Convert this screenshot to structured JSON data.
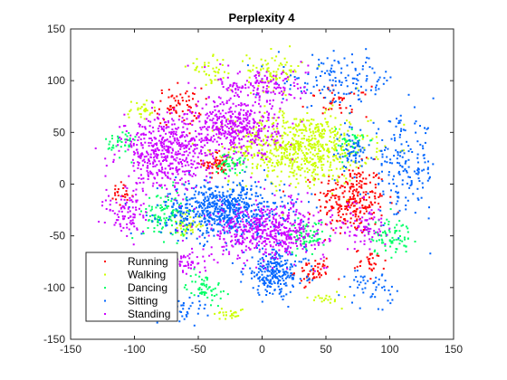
{
  "chart_data": {
    "type": "scatter",
    "title": "Perplexity 4",
    "xlabel": "",
    "ylabel": "",
    "xlim": [
      -150,
      150
    ],
    "ylim": [
      -150,
      150
    ],
    "xticks": [
      -150,
      -100,
      -50,
      0,
      50,
      100,
      150
    ],
    "yticks": [
      -150,
      -100,
      -50,
      0,
      50,
      100,
      150
    ],
    "grid": false,
    "legend_placement": "bottom-left",
    "series": [
      {
        "name": "Running",
        "color": "#ff0000",
        "clusters": [
          {
            "cx": 70,
            "cy": -15,
            "rx": 22,
            "ry": 28,
            "n": 260
          },
          {
            "cx": -35,
            "cy": 20,
            "rx": 10,
            "ry": 10,
            "n": 60
          },
          {
            "cx": -65,
            "cy": 75,
            "rx": 15,
            "ry": 15,
            "n": 70
          },
          {
            "cx": 40,
            "cy": -85,
            "rx": 12,
            "ry": 10,
            "n": 50
          },
          {
            "cx": 60,
            "cy": 80,
            "rx": 20,
            "ry": 12,
            "n": 40
          },
          {
            "cx": -110,
            "cy": -10,
            "rx": 8,
            "ry": 10,
            "n": 25
          },
          {
            "cx": 85,
            "cy": -75,
            "rx": 10,
            "ry": 10,
            "n": 30
          }
        ]
      },
      {
        "name": "Walking",
        "color": "#ccff00",
        "clusters": [
          {
            "cx": 30,
            "cy": 35,
            "rx": 45,
            "ry": 28,
            "n": 700
          },
          {
            "cx": 10,
            "cy": 110,
            "rx": 18,
            "ry": 15,
            "n": 80
          },
          {
            "cx": -60,
            "cy": -40,
            "rx": 10,
            "ry": 10,
            "n": 50
          },
          {
            "cx": -40,
            "cy": 110,
            "rx": 15,
            "ry": 10,
            "n": 40
          },
          {
            "cx": -95,
            "cy": 70,
            "rx": 10,
            "ry": 10,
            "n": 30
          },
          {
            "cx": -25,
            "cy": -125,
            "rx": 10,
            "ry": 5,
            "n": 25
          },
          {
            "cx": 50,
            "cy": -110,
            "rx": 10,
            "ry": 6,
            "n": 20
          }
        ]
      },
      {
        "name": "Dancing",
        "color": "#00ff66",
        "clusters": [
          {
            "cx": -75,
            "cy": -30,
            "rx": 15,
            "ry": 20,
            "n": 110
          },
          {
            "cx": 35,
            "cy": -50,
            "rx": 12,
            "ry": 12,
            "n": 70
          },
          {
            "cx": -25,
            "cy": 20,
            "rx": 10,
            "ry": 8,
            "n": 50
          },
          {
            "cx": -45,
            "cy": -100,
            "rx": 12,
            "ry": 12,
            "n": 60
          },
          {
            "cx": 100,
            "cy": -50,
            "rx": 15,
            "ry": 15,
            "n": 80
          },
          {
            "cx": -110,
            "cy": 40,
            "rx": 10,
            "ry": 12,
            "n": 40
          },
          {
            "cx": 70,
            "cy": 40,
            "rx": 10,
            "ry": 12,
            "n": 35
          }
        ]
      },
      {
        "name": "Sitting",
        "color": "#0066ff",
        "clusters": [
          {
            "cx": -30,
            "cy": -25,
            "rx": 40,
            "ry": 22,
            "n": 650
          },
          {
            "cx": 10,
            "cy": -85,
            "rx": 20,
            "ry": 18,
            "n": 260
          },
          {
            "cx": 110,
            "cy": 15,
            "rx": 22,
            "ry": 40,
            "n": 180
          },
          {
            "cx": 60,
            "cy": 100,
            "rx": 40,
            "ry": 20,
            "n": 140
          },
          {
            "cx": 70,
            "cy": 30,
            "rx": 10,
            "ry": 15,
            "n": 60
          },
          {
            "cx": -60,
            "cy": -120,
            "rx": 15,
            "ry": 10,
            "n": 40
          },
          {
            "cx": 85,
            "cy": -100,
            "rx": 15,
            "ry": 15,
            "n": 50
          }
        ]
      },
      {
        "name": "Standing",
        "color": "#cc00ff",
        "clusters": [
          {
            "cx": -20,
            "cy": 55,
            "rx": 28,
            "ry": 25,
            "n": 420
          },
          {
            "cx": -75,
            "cy": 30,
            "rx": 30,
            "ry": 30,
            "n": 520
          },
          {
            "cx": 5,
            "cy": -45,
            "rx": 38,
            "ry": 22,
            "n": 500
          },
          {
            "cx": 0,
            "cy": 95,
            "rx": 30,
            "ry": 15,
            "n": 150
          },
          {
            "cx": -105,
            "cy": -30,
            "rx": 14,
            "ry": 20,
            "n": 90
          },
          {
            "cx": 80,
            "cy": -40,
            "rx": 15,
            "ry": 20,
            "n": 80
          },
          {
            "cx": -60,
            "cy": -75,
            "rx": 15,
            "ry": 10,
            "n": 60
          }
        ]
      }
    ]
  }
}
